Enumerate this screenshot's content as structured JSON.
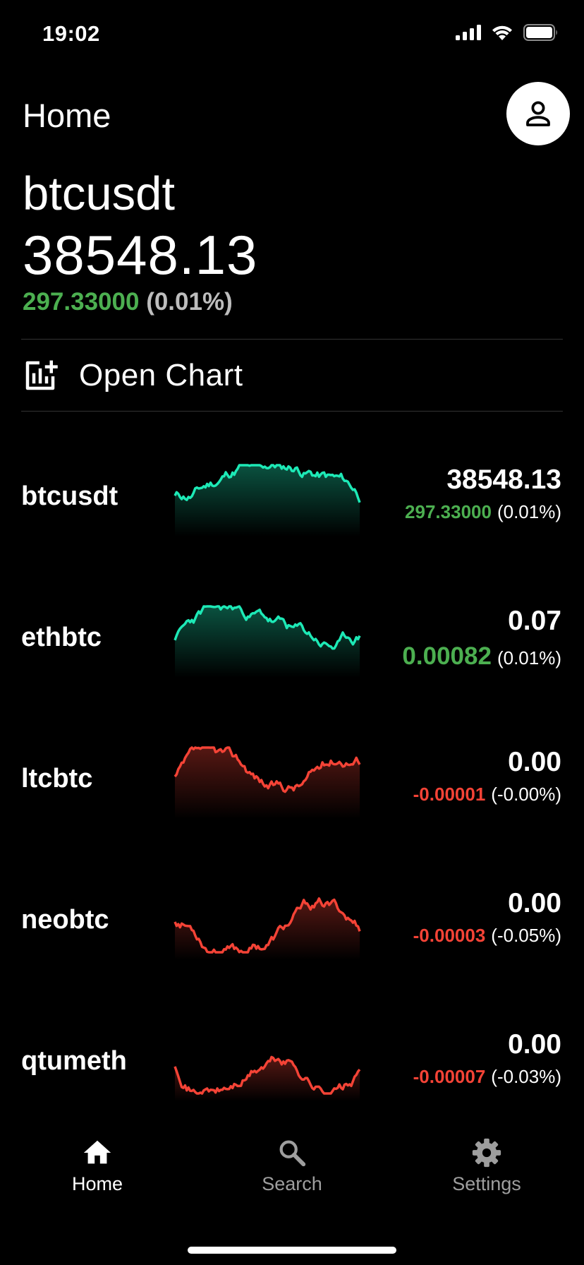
{
  "status_bar": {
    "time": "19:02"
  },
  "header": {
    "title": "Home",
    "profile_icon": "person-icon"
  },
  "hero": {
    "symbol": "btcusdt",
    "price": "38548.13",
    "change_amount": "297.33000",
    "change_percent": "(0.01%)"
  },
  "open_chart": {
    "label": "Open Chart",
    "icon": "add-chart-icon"
  },
  "tickers": [
    {
      "symbol": "btcusdt",
      "price": "38548.13",
      "change_amount": "297.33000",
      "change_percent": "(0.01%)",
      "trend": "up"
    },
    {
      "symbol": "ethbtc",
      "price": "0.07",
      "change_amount": "0.00082",
      "change_percent": "(0.01%)",
      "trend": "up"
    },
    {
      "symbol": "ltcbtc",
      "price": "0.00",
      "change_amount": "-0.00001",
      "change_percent": "(-0.00%)",
      "trend": "down"
    },
    {
      "symbol": "neobtc",
      "price": "0.00",
      "change_amount": "-0.00003",
      "change_percent": "(-0.05%)",
      "trend": "down"
    },
    {
      "symbol": "qtumeth",
      "price": "0.00",
      "change_amount": "-0.00007",
      "change_percent": "(-0.03%)",
      "trend": "down"
    }
  ],
  "tab_bar": {
    "items": [
      {
        "label": "Home",
        "icon": "home-icon",
        "active": true
      },
      {
        "label": "Search",
        "icon": "search-icon",
        "active": false
      },
      {
        "label": "Settings",
        "icon": "gear-icon",
        "active": false
      }
    ]
  },
  "colors": {
    "background": "#000000",
    "positive": "#4caf50",
    "negative": "#f44336",
    "spark_up": "#1de9b6",
    "spark_down": "#f44336"
  }
}
